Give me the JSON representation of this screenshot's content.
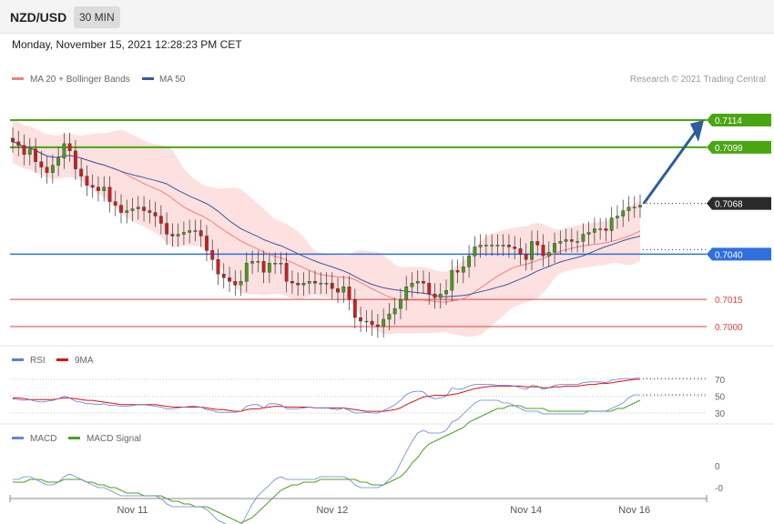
{
  "header": {
    "symbol": "NZD/USD",
    "timeframe": "30 MIN",
    "datetime": "Monday, November 15, 2021 12:28:23 PM CET"
  },
  "legend": {
    "ma20": "MA 20 + Bollinger Bands",
    "ma50": "MA 50",
    "credit": "Research © 2021 Trading Central"
  },
  "colors": {
    "up": "#4a9a1f",
    "down": "#cc1f1f",
    "ma20": "#f08080",
    "ma50": "#3a5a98",
    "band": "#fde0e0",
    "green_level": "#4aa512",
    "blue_level": "#2f6fe0",
    "red_level": "#e04040",
    "arrow": "#2d5d9c",
    "current": "#2a2a2a",
    "rsi": "#5b7fd6",
    "rsi_ma": "#e01010",
    "macd": "#6b82d8",
    "signal": "#49a222",
    "axis": "#888888"
  },
  "chart_data": [
    {
      "type": "candlestick",
      "title": "NZD/USD",
      "ylim": [
        0.6991,
        0.7124
      ],
      "levels": [
        {
          "value": 0.7114,
          "label": "0.7114",
          "kind": "resistance"
        },
        {
          "value": 0.7099,
          "label": "0.7099",
          "kind": "resistance"
        },
        {
          "value": 0.7068,
          "label": "0.7068",
          "kind": "current"
        },
        {
          "value": 0.704,
          "label": "0.7040",
          "kind": "pivot"
        },
        {
          "value": 0.7015,
          "label": "0.7015",
          "kind": "support"
        },
        {
          "value": 0.7,
          "label": "0.7000",
          "kind": "support"
        }
      ],
      "x_tick_labels": [
        {
          "index": 21,
          "label": "Nov 11"
        },
        {
          "index": 56,
          "label": "Nov 12"
        },
        {
          "index": 90,
          "label": "Nov 14"
        },
        {
          "index": 109,
          "label": "Nov 16"
        }
      ],
      "closes": [
        0.7102,
        0.71,
        0.7095,
        0.7098,
        0.7091,
        0.7088,
        0.7085,
        0.7089,
        0.7093,
        0.7101,
        0.7097,
        0.7087,
        0.7083,
        0.7078,
        0.7077,
        0.7075,
        0.7077,
        0.7069,
        0.7067,
        0.7063,
        0.7064,
        0.7065,
        0.7066,
        0.7064,
        0.7063,
        0.7061,
        0.7057,
        0.7051,
        0.705,
        0.7051,
        0.7052,
        0.7053,
        0.7053,
        0.705,
        0.7042,
        0.7037,
        0.7029,
        0.7027,
        0.7025,
        0.7023,
        0.7025,
        0.7035,
        0.7036,
        0.7036,
        0.703,
        0.7035,
        0.7035,
        0.7035,
        0.7025,
        0.7024,
        0.7023,
        0.7024,
        0.7025,
        0.7024,
        0.7024,
        0.7024,
        0.7021,
        0.7019,
        0.7022,
        0.7015,
        0.7005,
        0.7003,
        0.7003,
        0.7001,
        0.7,
        0.7004,
        0.7007,
        0.701,
        0.7015,
        0.7022,
        0.7024,
        0.7025,
        0.7024,
        0.7018,
        0.7016,
        0.7018,
        0.702,
        0.7031,
        0.703,
        0.7033,
        0.7039,
        0.7044,
        0.7045,
        0.7045,
        0.7045,
        0.7045,
        0.7045,
        0.7044,
        0.7043,
        0.704,
        0.7037,
        0.7047,
        0.7045,
        0.7039,
        0.7041,
        0.7046,
        0.7047,
        0.7048,
        0.7047,
        0.7047,
        0.7051,
        0.7052,
        0.7054,
        0.7054,
        0.7053,
        0.706,
        0.7061,
        0.7064,
        0.7066,
        0.7066,
        0.7067
      ],
      "series": [
        {
          "name": "MA 20 + Bollinger Bands",
          "kind": "overlay"
        },
        {
          "name": "MA 50",
          "kind": "overlay"
        }
      ]
    },
    {
      "type": "line",
      "title": "RSI",
      "ylim": [
        26,
        76
      ],
      "y_ticks": [
        70,
        50,
        30
      ],
      "series": [
        {
          "name": "RSI",
          "values": [
            47,
            46,
            45,
            46,
            44,
            43,
            44,
            45,
            47,
            50,
            48,
            44,
            43,
            41,
            41,
            40,
            41,
            39,
            39,
            38,
            38,
            39,
            40,
            40,
            39,
            38,
            37,
            35,
            35,
            36,
            37,
            38,
            38,
            37,
            34,
            33,
            31,
            31,
            31,
            31,
            32,
            38,
            40,
            40,
            36,
            41,
            41,
            40,
            35,
            35,
            35,
            36,
            37,
            36,
            36,
            36,
            35,
            34,
            36,
            33,
            30,
            30,
            31,
            30,
            30,
            33,
            36,
            40,
            45,
            52,
            55,
            56,
            55,
            49,
            47,
            48,
            50,
            60,
            58,
            59,
            62,
            64,
            64,
            64,
            64,
            63,
            63,
            63,
            62,
            60,
            58,
            63,
            62,
            58,
            60,
            63,
            64,
            64,
            64,
            64,
            66,
            67,
            67,
            67,
            66,
            69,
            70,
            71,
            71,
            71,
            72
          ]
        },
        {
          "name": "9MA",
          "values": [
            48,
            48,
            47,
            46,
            46,
            46,
            46,
            46,
            47,
            48,
            48,
            47,
            46,
            45,
            45,
            44,
            43,
            42,
            41,
            40,
            40,
            40,
            40,
            40,
            40,
            40,
            39,
            38,
            37,
            37,
            37,
            37,
            37,
            37,
            36,
            35,
            34,
            34,
            33,
            32,
            32,
            34,
            35,
            35,
            36,
            37,
            38,
            38,
            37,
            37,
            37,
            37,
            37,
            36,
            36,
            36,
            36,
            36,
            36,
            35,
            34,
            33,
            32,
            32,
            32,
            32,
            33,
            34,
            36,
            40,
            43,
            46,
            49,
            50,
            51,
            51,
            51,
            52,
            53,
            55,
            57,
            59,
            60,
            61,
            62,
            62,
            62,
            62,
            62,
            62,
            61,
            61,
            61,
            60,
            60,
            61,
            61,
            62,
            62,
            62,
            63,
            64,
            64,
            65,
            65,
            66,
            67,
            68,
            69,
            70,
            70
          ]
        }
      ]
    },
    {
      "type": "line",
      "title": "MACD",
      "y_ticks": [
        {
          "value": 0,
          "label": "0"
        },
        {
          "value": -0.0008,
          "label": "-0"
        }
      ],
      "series": [
        {
          "name": "MACD",
          "values": [
            -0.0005,
            -0.0005,
            -0.0004,
            -0.0004,
            -0.0005,
            -0.0006,
            -0.0007,
            -0.0007,
            -0.0006,
            -0.0004,
            -0.0003,
            -0.0004,
            -0.0005,
            -0.0006,
            -0.0007,
            -0.0008,
            -0.0008,
            -0.0009,
            -0.001,
            -0.0011,
            -0.0011,
            -0.0011,
            -0.0011,
            -0.0011,
            -0.0011,
            -0.0011,
            -0.0012,
            -0.0014,
            -0.0015,
            -0.0015,
            -0.0015,
            -0.0015,
            -0.0015,
            -0.0015,
            -0.0016,
            -0.0018,
            -0.002,
            -0.0021,
            -0.0022,
            -0.0023,
            -0.0022,
            -0.0018,
            -0.0014,
            -0.0011,
            -0.0009,
            -0.0007,
            -0.0005,
            -0.0004,
            -0.0005,
            -0.0005,
            -0.0005,
            -0.0005,
            -0.0005,
            -0.0005,
            -0.0004,
            -0.0004,
            -0.0004,
            -0.0004,
            -0.0004,
            -0.0005,
            -0.0007,
            -0.0008,
            -0.0008,
            -0.0008,
            -0.0008,
            -0.0007,
            -0.0005,
            -0.0003,
            0.0001,
            0.0005,
            0.0009,
            0.0012,
            0.0013,
            0.0012,
            0.0012,
            0.0012,
            0.0013,
            0.0016,
            0.0017,
            0.0019,
            0.0021,
            0.0023,
            0.0024,
            0.0024,
            0.0024,
            0.0024,
            0.0023,
            0.0023,
            0.0022,
            0.0021,
            0.002,
            0.002,
            0.002,
            0.0019,
            0.0019,
            0.0019,
            0.0019,
            0.0019,
            0.0019,
            0.0019,
            0.0019,
            0.002,
            0.002,
            0.002,
            0.002,
            0.0021,
            0.0022,
            0.0023,
            0.0025,
            0.0026,
            0.0026
          ]
        },
        {
          "name": "MACD Signal",
          "values": [
            -0.0006,
            -0.0006,
            -0.0006,
            -0.0005,
            -0.0005,
            -0.0005,
            -0.0006,
            -0.0006,
            -0.0006,
            -0.0005,
            -0.0005,
            -0.0005,
            -0.0005,
            -0.0006,
            -0.0006,
            -0.0007,
            -0.0007,
            -0.0008,
            -0.0008,
            -0.0009,
            -0.001,
            -0.001,
            -0.001,
            -0.0011,
            -0.0011,
            -0.0011,
            -0.0011,
            -0.0012,
            -0.0013,
            -0.0013,
            -0.0014,
            -0.0014,
            -0.0015,
            -0.0015,
            -0.0015,
            -0.0016,
            -0.0017,
            -0.0018,
            -0.0019,
            -0.002,
            -0.0021,
            -0.002,
            -0.0019,
            -0.0017,
            -0.0015,
            -0.0013,
            -0.0011,
            -0.0009,
            -0.0008,
            -0.0007,
            -0.0007,
            -0.0006,
            -0.0006,
            -0.0006,
            -0.0005,
            -0.0005,
            -0.0005,
            -0.0005,
            -0.0005,
            -0.0005,
            -0.0005,
            -0.0006,
            -0.0006,
            -0.0007,
            -0.0007,
            -0.0007,
            -0.0006,
            -0.0005,
            -0.0004,
            -0.0002,
            0.0001,
            0.0003,
            0.0006,
            0.0008,
            0.0009,
            0.001,
            0.0011,
            0.0012,
            0.0013,
            0.0014,
            0.0016,
            0.0017,
            0.0018,
            0.0019,
            0.002,
            0.0021,
            0.0021,
            0.0022,
            0.0022,
            0.0022,
            0.0021,
            0.0021,
            0.0021,
            0.0021,
            0.002,
            0.002,
            0.002,
            0.002,
            0.002,
            0.002,
            0.002,
            0.002,
            0.002,
            0.002,
            0.002,
            0.002,
            0.0021,
            0.0021,
            0.0022,
            0.0023,
            0.0024
          ]
        }
      ]
    }
  ]
}
